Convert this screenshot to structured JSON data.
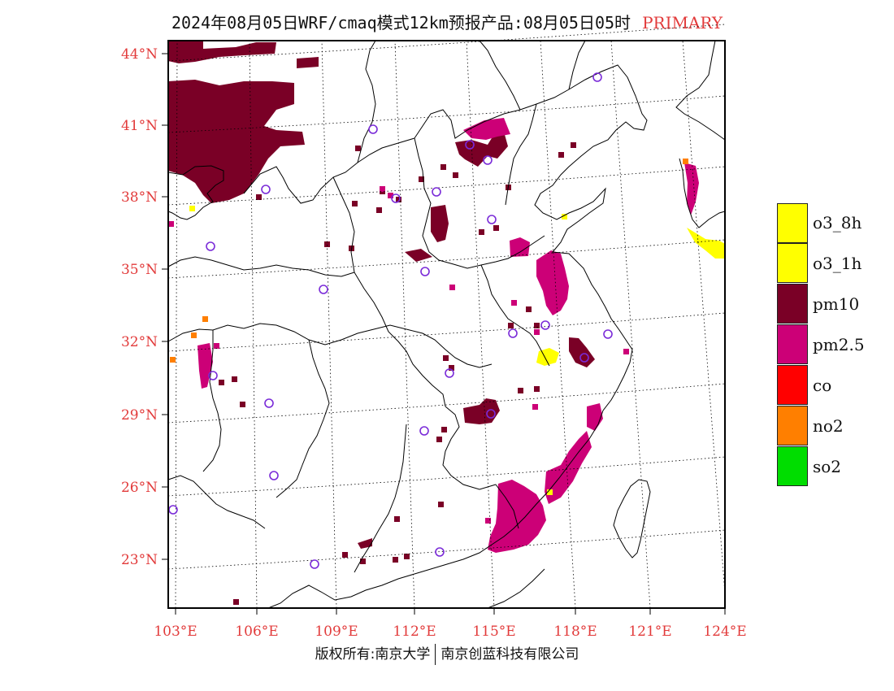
{
  "title": {
    "main": "2024年08月05日WRF/cmaq模式12km预报产品:08月05日05时",
    "tag": "PRIMARY"
  },
  "latitude_labels": [
    "44°N",
    "41°N",
    "38°N",
    "35°N",
    "32°N",
    "29°N",
    "26°N",
    "23°N"
  ],
  "longitude_labels": [
    "103°E",
    "106°E",
    "109°E",
    "112°E",
    "115°E",
    "118°E",
    "121°E",
    "124°E"
  ],
  "legend": [
    {
      "label": "o3_8h",
      "color": "#ffff00"
    },
    {
      "label": "o3_1h",
      "color": "#ffff00"
    },
    {
      "label": "pm10",
      "color": "#7a0026"
    },
    {
      "label": "pm2.5",
      "color": "#cc0077"
    },
    {
      "label": "co",
      "color": "#ff0000"
    },
    {
      "label": "no2",
      "color": "#ff7f00"
    },
    {
      "label": "so2",
      "color": "#00dd00"
    }
  ],
  "footer": {
    "left": "版权所有:南京大学",
    "right": "南京创蓝科技有限公司"
  }
}
